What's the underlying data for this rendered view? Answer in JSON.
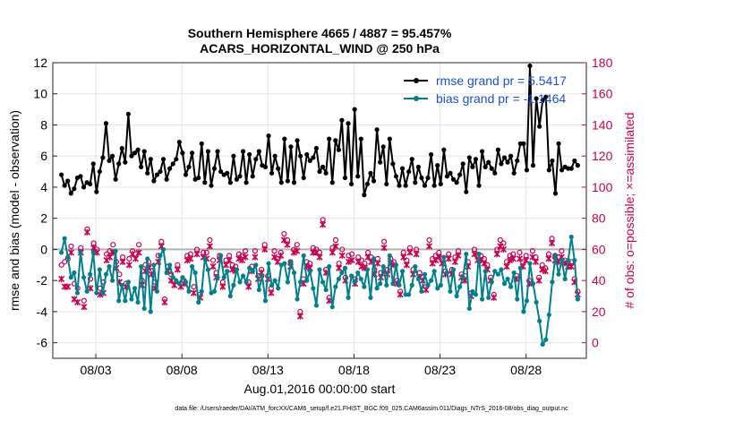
{
  "chart_data": {
    "type": "line",
    "title": "Southern Hemisphere 4665 / 4887 = 95.457%",
    "subtitle": "ACARS_HORIZONTAL_WIND @ 250 hPa",
    "xlabel": "Aug.01,2016 00:00:00 start",
    "ylabel": "rmse and bias (model - observation)",
    "y2label": "# of obs: o=possible; ×=assimilated",
    "xlim": [
      0.5,
      31.5
    ],
    "ylim": [
      -7,
      12
    ],
    "y2lim": [
      -10,
      180
    ],
    "x_tick_values": [
      3,
      8,
      13,
      18,
      23,
      28
    ],
    "x_tick_labels": [
      "08/03",
      "08/08",
      "08/13",
      "08/18",
      "08/23",
      "08/28"
    ],
    "y_tick_labels": [
      "12",
      "10",
      "8",
      "6",
      "4",
      "2",
      "0",
      "-2",
      "-4",
      "-6"
    ],
    "y2_tick_labels": [
      "180",
      "160",
      "140",
      "120",
      "100",
      "80",
      "60",
      "40",
      "20",
      "0"
    ],
    "y_ticks": [
      12,
      10,
      8,
      6,
      4,
      2,
      0,
      -2,
      -4,
      -6
    ],
    "y2_ticks": [
      180,
      160,
      140,
      120,
      100,
      80,
      60,
      40,
      20,
      0
    ],
    "grid": true,
    "zero_line": 0,
    "legend_position": "top-right",
    "series": [
      {
        "name": "rmse grand pr = 5.5417",
        "color": "#000000",
        "axis": "left",
        "values": [
          4.8,
          4.1,
          4.4,
          3.6,
          3.9,
          4.6,
          4.7,
          4.0,
          4.3,
          4.2,
          5.5,
          3.7,
          5.0,
          5.9,
          8.1,
          5.7,
          6.0,
          4.5,
          5.5,
          6.5,
          5.6,
          8.7,
          6.0,
          6.2,
          6.4,
          5.3,
          6.3,
          4.9,
          5.8,
          4.4,
          4.8,
          5.0,
          5.8,
          4.5,
          5.2,
          5.5,
          5.8,
          6.9,
          6.2,
          4.8,
          5.3,
          6.2,
          4.5,
          4.6,
          6.8,
          4.3,
          6.3,
          4.1,
          5.2,
          6.3,
          5.0,
          4.8,
          4.9,
          4.3,
          6.0,
          4.5,
          4.7,
          6.3,
          4.3,
          6.1,
          4.7,
          5.8,
          6.3,
          5.4,
          5.3,
          7.3,
          4.9,
          6.0,
          5.2,
          4.3,
          7.1,
          4.4,
          6.6,
          4.3,
          7.0,
          6.0,
          4.6,
          6.1,
          5.7,
          5.9,
          6.5,
          5.0,
          5.3,
          4.9,
          7.1,
          4.3,
          7.0,
          6.4,
          8.3,
          4.6,
          8.1,
          4.2,
          9.0,
          4.7,
          7.1,
          3.5,
          4.2,
          4.9,
          4.4,
          7.7,
          5.6,
          6.6,
          4.2,
          7.1,
          5.5,
          4.7,
          4.1,
          5.2,
          4.1,
          5.0,
          5.8,
          4.3,
          5.3,
          4.6,
          4.1,
          4.6,
          6.1,
          4.1,
          5.4,
          4.2,
          6.4,
          4.7,
          4.9,
          4.5,
          4.3,
          4.8,
          5.5,
          3.7,
          5.9,
          5.3,
          5.8,
          4.1,
          6.3,
          5.3,
          5.6,
          5.2,
          4.9,
          6.4,
          5.5,
          5.9,
          5.6,
          6.0,
          4.9,
          5.7,
          6.8,
          6.8,
          5.1,
          11.8,
          5.4,
          9.7,
          7.9,
          9.6,
          9.8,
          5.1,
          5.7,
          3.6,
          6.8,
          5.1,
          5.3,
          5.2,
          5.2,
          5.7,
          5.4
        ]
      },
      {
        "name": "bias grand pr = -1.1464",
        "color": "#00808c",
        "axis": "left",
        "values": [
          -0.2,
          0.7,
          -0.5,
          -1.8,
          -1.5,
          -2.8,
          -0.2,
          -1.8,
          -2.7,
          -1.6,
          -0.2,
          -2.8,
          -1.3,
          -2.8,
          -1.6,
          -1.1,
          -2.0,
          -0.1,
          -3.3,
          -2.3,
          -3.3,
          -2.1,
          -3.2,
          -2.5,
          -3.4,
          -1.1,
          -3.8,
          -0.6,
          -4.0,
          -1.0,
          -2.7,
          -0.4,
          0.0,
          -1.5,
          -1.0,
          -1.8,
          -2.0,
          -2.2,
          -1.8,
          -2.1,
          -2.7,
          -1.1,
          -1.5,
          -3.4,
          -2.7,
          -0.6,
          -1.3,
          -2.8,
          -2.7,
          -1.8,
          -0.4,
          -1.8,
          -1.4,
          -3.0,
          -2.3,
          -1.3,
          -2.1,
          -1.7,
          -2.1,
          -1.2,
          -1.4,
          -1.0,
          -2.6,
          -1.7,
          -3.3,
          -0.9,
          -2.3,
          -2.0,
          -2.5,
          -1.0,
          -0.9,
          -2.1,
          -0.8,
          -1.5,
          -3.2,
          -2.1,
          -0.4,
          -2.0,
          -1.4,
          -2.5,
          -3.6,
          -1.3,
          -2.1,
          -2.6,
          -1.1,
          -3.7,
          -2.4,
          -1.9,
          -1.5,
          -1.2,
          -3.1,
          -1.7,
          -2.1,
          -1.5,
          -1.9,
          -2.4,
          -1.3,
          -3.1,
          -0.6,
          -2.5,
          -2.2,
          -1.1,
          -2.3,
          -0.4,
          -2.2,
          -1.0,
          -2.3,
          -1.4,
          -2.9,
          -2.9,
          -2.3,
          -1.1,
          -1.9,
          -2.7,
          -1.6,
          -2.3,
          -2.0,
          -1.4,
          -2.5,
          -2.3,
          -0.5,
          -1.5,
          -2.7,
          -1.3,
          -3.0,
          -2.4,
          -1.8,
          -0.3,
          -3.8,
          -2.7,
          -2.9,
          -0.3,
          -3.2,
          -1.4,
          -3.1,
          -2.1,
          -1.4,
          -1.6,
          -1.3,
          -2.2,
          -1.9,
          -2.4,
          -1.5,
          -3.2,
          -1.2,
          -4.0,
          -3.3,
          -0.9,
          -2.2,
          -3.4,
          -4.6,
          -6.1,
          -5.8,
          -4.2,
          -2.1,
          -0.4,
          -1.6,
          -0.7,
          -1.9,
          -0.7,
          0.8,
          -0.7,
          -3.2
        ]
      }
    ],
    "obs_possible_marker": "o",
    "obs_assimilated_marker": "×",
    "obs_color": "#c8004f",
    "obs_possible": [
      50,
      52,
      54,
      62,
      38,
      35,
      61,
      27,
      73,
      41,
      64,
      60,
      35,
      39,
      57,
      59,
      63,
      52,
      44,
      55,
      38,
      54,
      59,
      57,
      63,
      40,
      50,
      52,
      49,
      39,
      56,
      65,
      28,
      49,
      44,
      40,
      50,
      38,
      40,
      56,
      57,
      36,
      60,
      31,
      58,
      58,
      66,
      53,
      45,
      56,
      39,
      53,
      56,
      50,
      49,
      57,
      56,
      59,
      39,
      49,
      59,
      43,
      47,
      63,
      43,
      35,
      59,
      54,
      58,
      70,
      66,
      52,
      60,
      63,
      20,
      41,
      52,
      51,
      61,
      60,
      58,
      79,
      47,
      29,
      61,
      66,
      51,
      60,
      42,
      56,
      57,
      41,
      55,
      53,
      51,
      58,
      55,
      47,
      54,
      45,
      65,
      47,
      54,
      52,
      40,
      33,
      58,
      53,
      61,
      47,
      60,
      45,
      42,
      36,
      66,
      54,
      56,
      58,
      54,
      46,
      57,
      47,
      55,
      59,
      44,
      43,
      52,
      32,
      60,
      56,
      56,
      54,
      50,
      42,
      31,
      60,
      66,
      64,
      52,
      56,
      57,
      43,
      58,
      52,
      56,
      40,
      59,
      55,
      42,
      50,
      48,
      57,
      67,
      56,
      55,
      59,
      53,
      52,
      52,
      41,
      33
    ],
    "obs_assimilated": [
      41,
      36,
      36,
      58,
      28,
      26,
      58,
      23,
      71,
      35,
      61,
      58,
      31,
      32,
      53,
      55,
      58,
      48,
      39,
      52,
      36,
      50,
      57,
      54,
      58,
      37,
      46,
      48,
      44,
      35,
      52,
      62,
      26,
      46,
      40,
      37,
      47,
      36,
      38,
      53,
      54,
      32,
      57,
      29,
      55,
      54,
      62,
      49,
      42,
      53,
      36,
      50,
      53,
      47,
      46,
      54,
      53,
      55,
      36,
      46,
      55,
      41,
      45,
      60,
      41,
      32,
      55,
      52,
      56,
      66,
      63,
      49,
      58,
      59,
      17,
      38,
      49,
      48,
      58,
      58,
      55,
      76,
      45,
      27,
      58,
      62,
      48,
      56,
      40,
      52,
      53,
      38,
      52,
      49,
      48,
      55,
      52,
      44,
      51,
      42,
      61,
      44,
      51,
      50,
      38,
      31,
      55,
      50,
      58,
      44,
      57,
      42,
      40,
      34,
      62,
      51,
      53,
      55,
      51,
      44,
      54,
      44,
      52,
      56,
      42,
      40,
      49,
      30,
      57,
      53,
      53,
      51,
      47,
      40,
      29,
      57,
      62,
      60,
      49,
      53,
      54,
      41,
      54,
      49,
      53,
      38,
      55,
      52,
      40,
      47,
      46,
      54,
      64,
      53,
      52,
      55,
      51,
      49,
      49,
      39,
      31
    ]
  },
  "footer": {
    "data_file": "data file: /Users/raeder/DAI/ATM_forcXX/CAM6_setup/f.e21.FHIST_BGC.f09_025.CAM6assim.011/Diags_NTrS_2016-08/obs_diag_output.nc"
  }
}
